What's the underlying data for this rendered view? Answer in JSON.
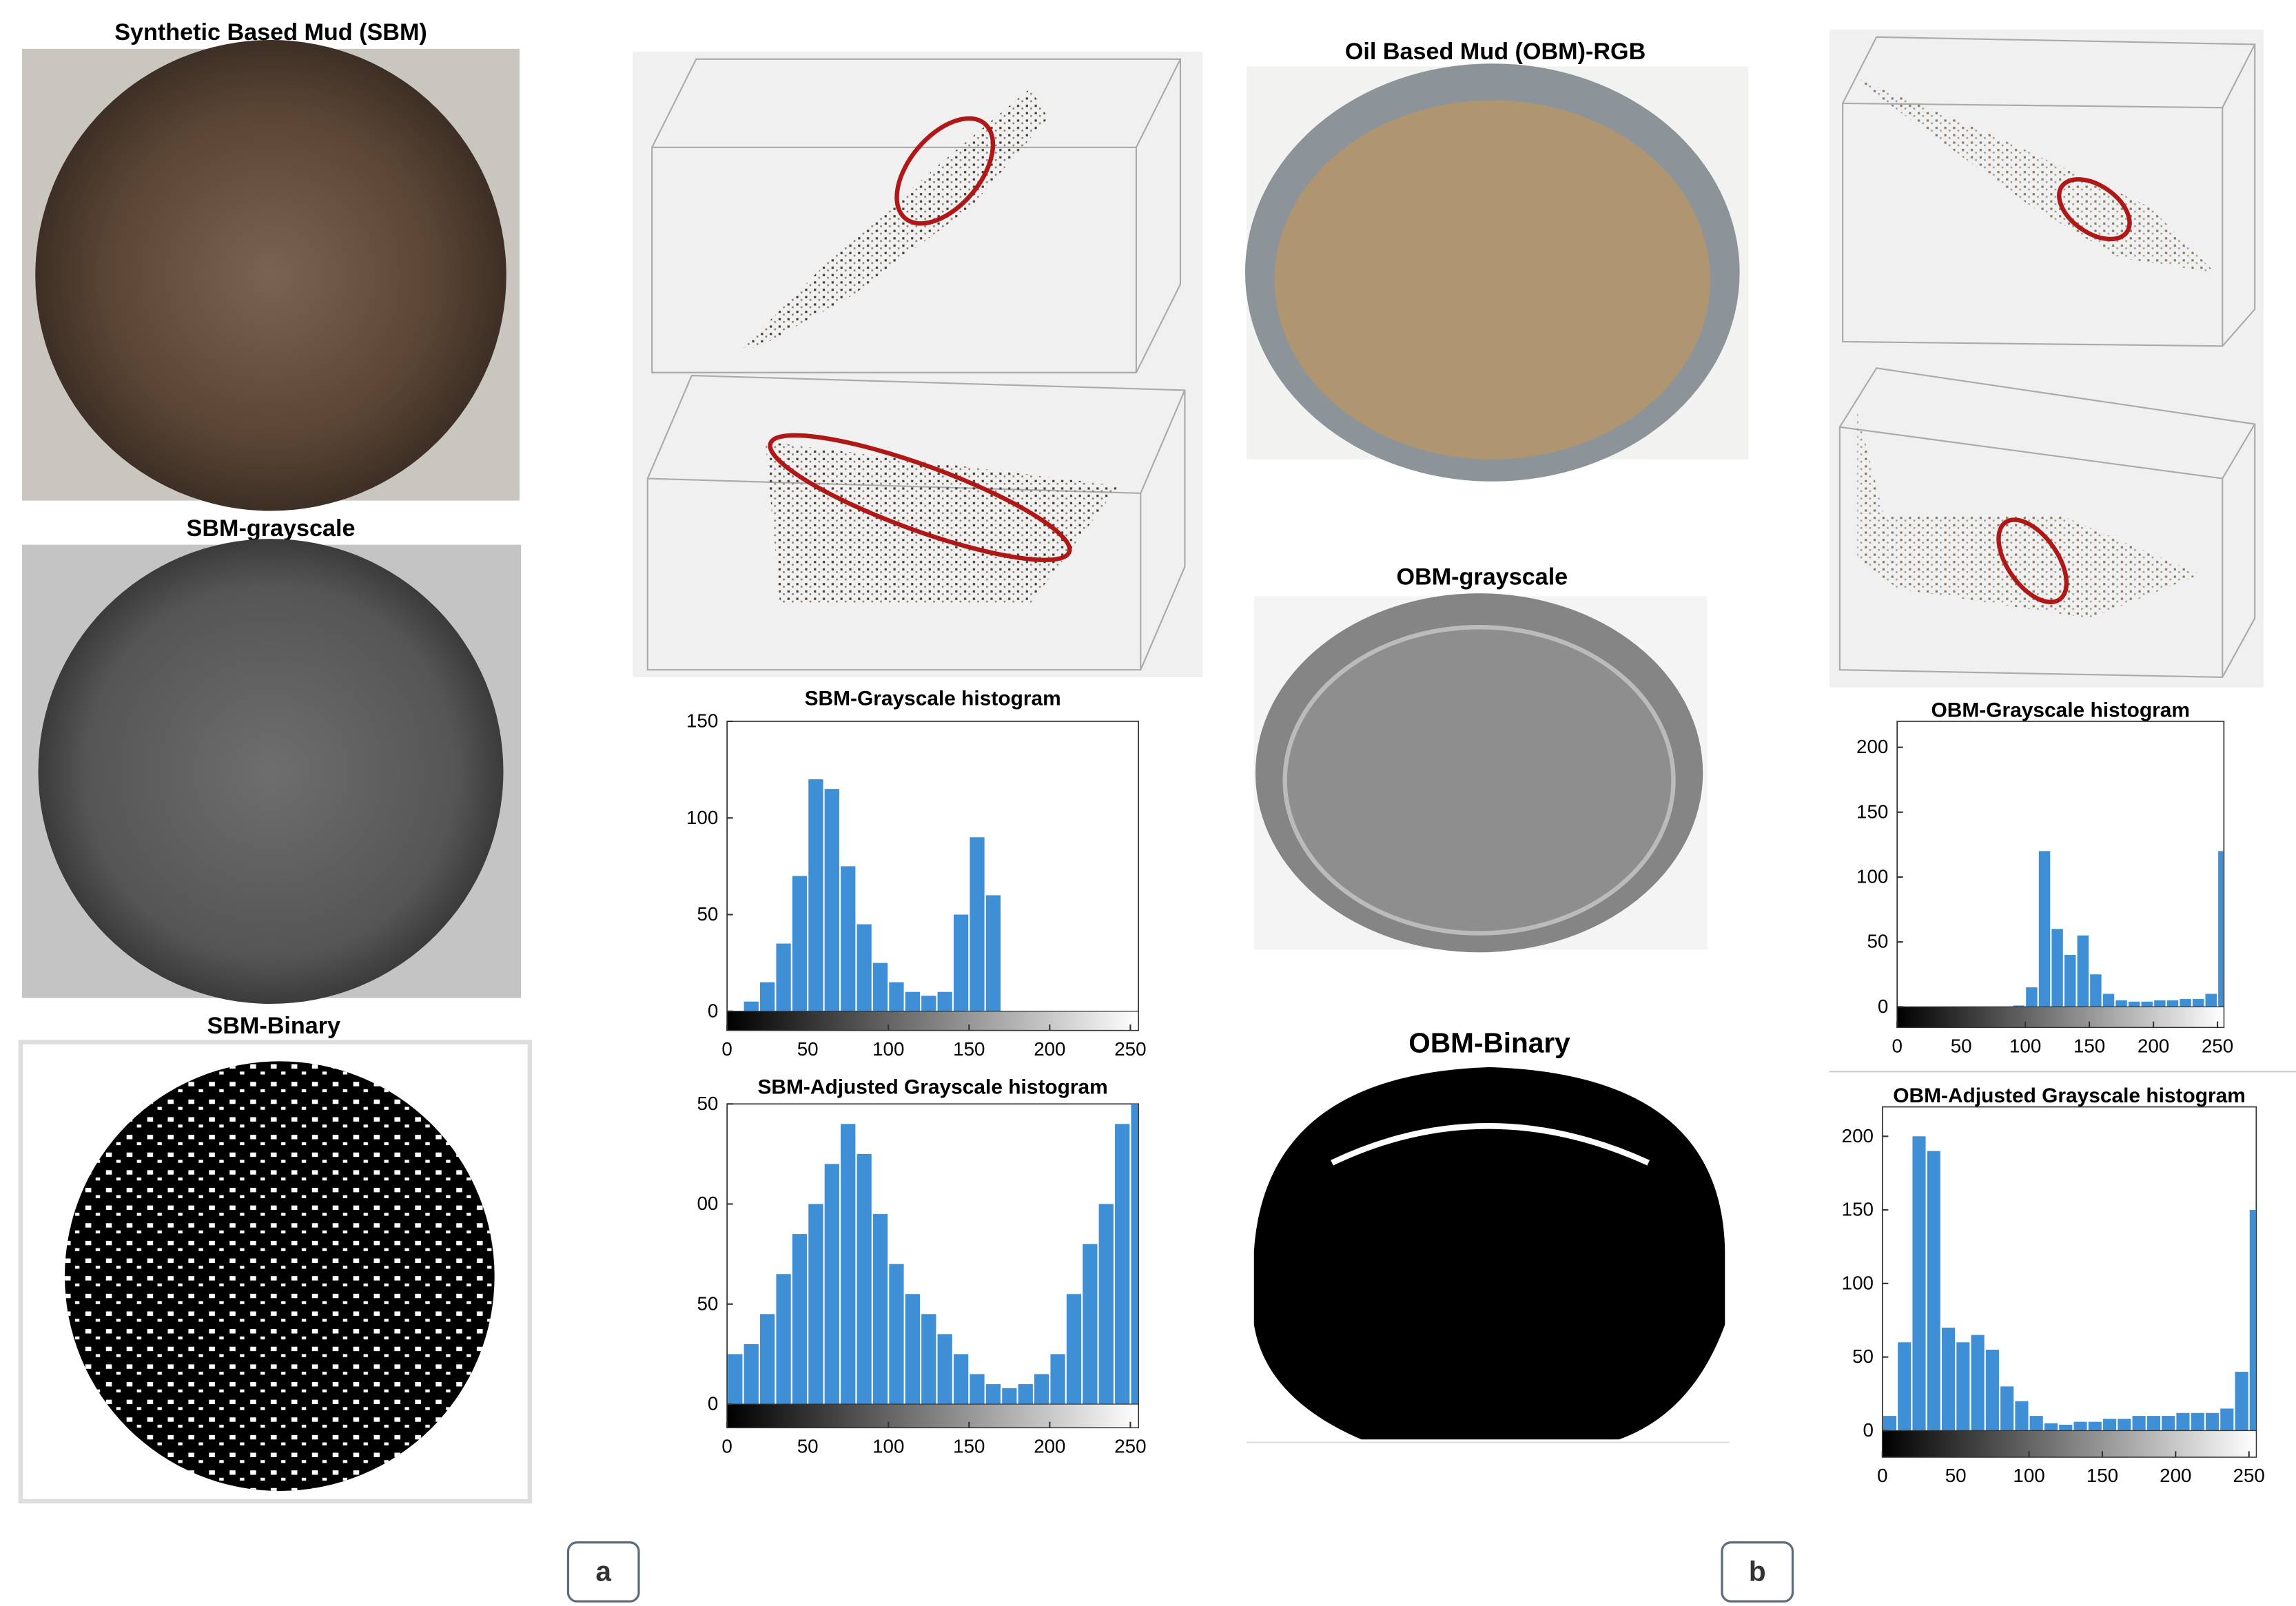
{
  "figure": {
    "sbm_rgb_title": "Synthetic Based Mud (SBM)",
    "sbm_gray_title": "SBM-grayscale",
    "sbm_binary_title": "SBM-Binary",
    "obm_rgb_title": "Oil Based Mud (OBM)-RGB",
    "obm_gray_title": "OBM-grayscale",
    "obm_binary_title": "OBM-Binary",
    "panel_a": "a",
    "panel_b": "b"
  },
  "chart_data": [
    {
      "type": "histogram",
      "title": "SBM-Grayscale histogram",
      "color": "#3f8fd6",
      "bins": [
        0,
        10,
        20,
        30,
        40,
        50,
        60,
        70,
        80,
        90,
        100,
        110,
        120,
        130,
        140,
        150,
        160,
        170,
        180,
        190,
        200,
        210,
        220,
        230,
        240,
        250,
        255
      ],
      "values": [
        0,
        5,
        15,
        35,
        70,
        120,
        115,
        75,
        45,
        25,
        15,
        10,
        8,
        10,
        50,
        90,
        60,
        0,
        0,
        0,
        0,
        0,
        0,
        0,
        0,
        0
      ],
      "xlim": [
        0,
        255
      ],
      "ylim": [
        0,
        150
      ],
      "xticks": [
        0,
        50,
        100,
        150,
        200,
        250
      ],
      "yticks": [
        0,
        50,
        100,
        150
      ]
    },
    {
      "type": "histogram",
      "title": "SBM-Adjusted Grayscale histogram",
      "color": "#3f8fd6",
      "bins": [
        0,
        10,
        20,
        30,
        40,
        50,
        60,
        70,
        80,
        90,
        100,
        110,
        120,
        130,
        140,
        150,
        160,
        170,
        180,
        190,
        200,
        210,
        220,
        230,
        240,
        250,
        255
      ],
      "values": [
        25,
        30,
        45,
        65,
        85,
        100,
        120,
        140,
        125,
        95,
        70,
        55,
        45,
        35,
        25,
        15,
        10,
        8,
        10,
        15,
        25,
        55,
        80,
        100,
        140,
        150
      ],
      "xlim": [
        0,
        255
      ],
      "ylim": [
        0,
        150
      ],
      "xticks": [
        0,
        50,
        100,
        150,
        200,
        250
      ],
      "yticks": [
        0,
        50,
        {
          "value": 100,
          "label": "00"
        },
        {
          "value": 150,
          "label": "50"
        }
      ]
    },
    {
      "type": "histogram",
      "title": "OBM-Grayscale histogram",
      "color": "#3f8fd6",
      "bins": [
        0,
        10,
        20,
        30,
        40,
        50,
        60,
        70,
        80,
        90,
        100,
        110,
        120,
        130,
        140,
        150,
        160,
        170,
        180,
        190,
        200,
        210,
        220,
        230,
        240,
        250,
        255
      ],
      "values": [
        0,
        0,
        0,
        0,
        0,
        0,
        0,
        0,
        0,
        1,
        15,
        120,
        60,
        40,
        55,
        25,
        10,
        5,
        4,
        4,
        5,
        5,
        6,
        6,
        10,
        120
      ],
      "xlim": [
        0,
        255
      ],
      "ylim": [
        0,
        220
      ],
      "xticks": [
        0,
        50,
        100,
        150,
        200,
        250
      ],
      "yticks": [
        0,
        50,
        100,
        150,
        200
      ]
    },
    {
      "type": "histogram",
      "title": "OBM-Adjusted Grayscale histogram",
      "color": "#3f8fd6",
      "bins": [
        0,
        10,
        20,
        30,
        40,
        50,
        60,
        70,
        80,
        90,
        100,
        110,
        120,
        130,
        140,
        150,
        160,
        170,
        180,
        190,
        200,
        210,
        220,
        230,
        240,
        250,
        255
      ],
      "values": [
        10,
        60,
        200,
        190,
        70,
        60,
        65,
        55,
        30,
        20,
        10,
        5,
        4,
        6,
        6,
        8,
        8,
        10,
        10,
        10,
        12,
        12,
        12,
        15,
        40,
        150
      ],
      "xlim": [
        0,
        255
      ],
      "ylim": [
        0,
        220
      ],
      "xticks": [
        0,
        50,
        100,
        150,
        200,
        250
      ],
      "yticks": [
        0,
        50,
        100,
        150,
        200
      ]
    }
  ]
}
